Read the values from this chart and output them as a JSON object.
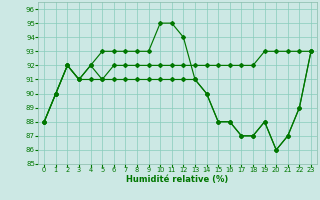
{
  "background_color": "#cce8e4",
  "grid_color": "#88ccbb",
  "line_color": "#007700",
  "xlim": [
    -0.5,
    23.5
  ],
  "ylim": [
    85,
    96.5
  ],
  "yticks": [
    85,
    86,
    87,
    88,
    89,
    90,
    91,
    92,
    93,
    94,
    95,
    96
  ],
  "xticks": [
    0,
    1,
    2,
    3,
    4,
    5,
    6,
    7,
    8,
    9,
    10,
    11,
    12,
    13,
    14,
    15,
    16,
    17,
    18,
    19,
    20,
    21,
    22,
    23
  ],
  "xlabel": "Humidité relative (%)",
  "line1_y": [
    88,
    90,
    92,
    91,
    92,
    93,
    93,
    93,
    93,
    93,
    95,
    95,
    94,
    91,
    90,
    88,
    88,
    87,
    87,
    88,
    86,
    87,
    89,
    93
  ],
  "line2_y": [
    88,
    90,
    92,
    91,
    91,
    91,
    92,
    92,
    92,
    92,
    92,
    92,
    92,
    92,
    92,
    92,
    92,
    92,
    92,
    93,
    93,
    93,
    93,
    93
  ],
  "line3_y": [
    88,
    90,
    92,
    91,
    92,
    91,
    91,
    91,
    91,
    91,
    91,
    91,
    91,
    91,
    90,
    88,
    88,
    87,
    87,
    88,
    86,
    87,
    89,
    93
  ]
}
